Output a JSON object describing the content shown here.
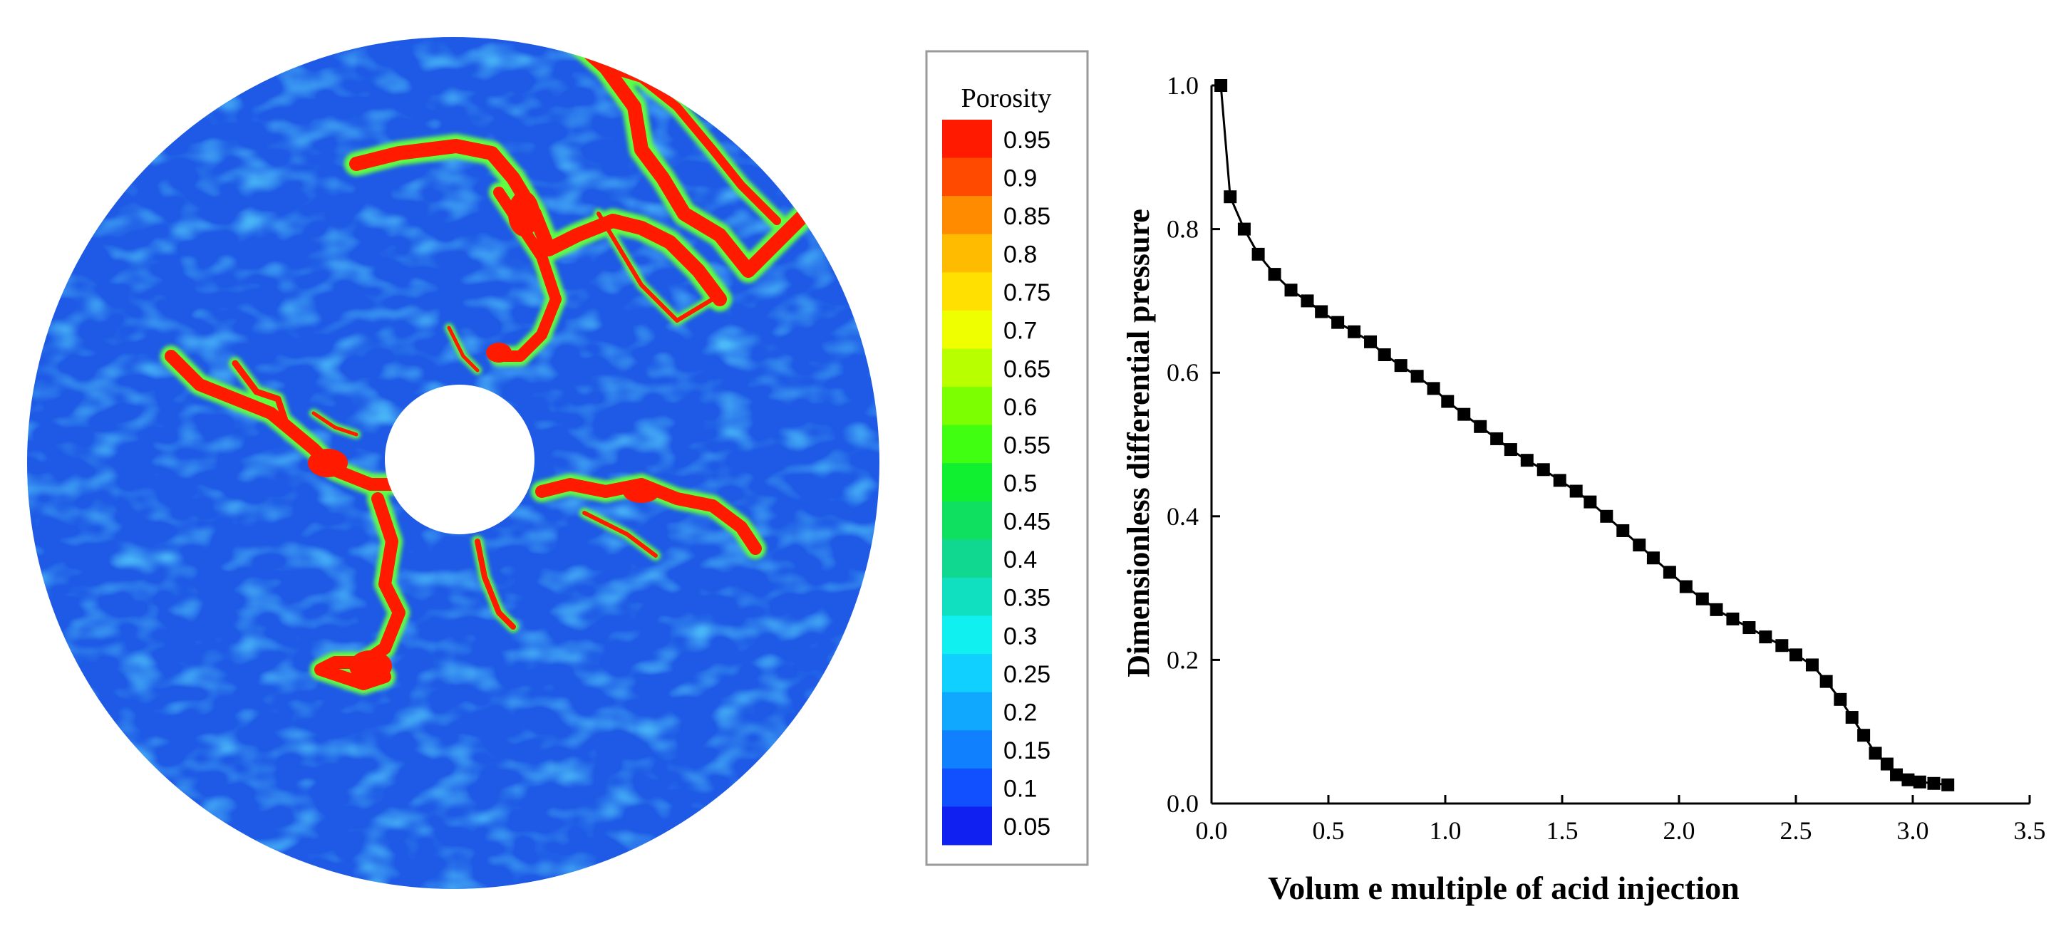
{
  "colorbar": {
    "title": "Porosity",
    "labels": [
      "0.95",
      "0.9",
      "0.85",
      "0.8",
      "0.75",
      "0.7",
      "0.65",
      "0.6",
      "0.55",
      "0.5",
      "0.45",
      "0.4",
      "0.35",
      "0.3",
      "0.25",
      "0.2",
      "0.15",
      "0.1",
      "0.05"
    ],
    "colors": [
      "#ff1a00",
      "#ff4a00",
      "#ff8c00",
      "#ffbb00",
      "#ffe000",
      "#f0ff00",
      "#b8ff00",
      "#7cff00",
      "#40ff10",
      "#10f030",
      "#10e060",
      "#10d890",
      "#10e0c0",
      "#10f0f0",
      "#10d0ff",
      "#10a8ff",
      "#1080ff",
      "#1050ff",
      "#1020f0"
    ]
  },
  "porosity_map": {
    "background_color": "#1e5ae6",
    "wormhole_color": "#ff1a00",
    "halo_color": "#60ff40"
  },
  "chart_data": {
    "type": "scatter",
    "xlabel": "Volum e multiple of acid injection",
    "ylabel": "Dimensionless differential pressure",
    "xlim": [
      0,
      3.5
    ],
    "ylim": [
      0,
      1.0
    ],
    "x_ticks": [
      "0.0",
      "0.5",
      "1.0",
      "1.5",
      "2.0",
      "2.5",
      "3.0",
      "3.5"
    ],
    "y_ticks": [
      "0.0",
      "0.2",
      "0.4",
      "0.6",
      "0.8",
      "1.0"
    ],
    "grid": false,
    "series": [
      {
        "marker": "square",
        "line": true,
        "color": "#000000",
        "x": [
          0.04,
          0.08,
          0.14,
          0.2,
          0.27,
          0.34,
          0.41,
          0.47,
          0.54,
          0.61,
          0.68,
          0.74,
          0.81,
          0.88,
          0.95,
          1.01,
          1.08,
          1.15,
          1.22,
          1.28,
          1.35,
          1.42,
          1.49,
          1.56,
          1.62,
          1.69,
          1.76,
          1.83,
          1.89,
          1.96,
          2.03,
          2.1,
          2.16,
          2.23,
          2.3,
          2.37,
          2.44,
          2.5,
          2.57,
          2.63,
          2.69,
          2.74,
          2.79,
          2.84,
          2.89,
          2.93,
          2.98,
          3.03,
          3.09,
          3.15
        ],
        "y": [
          1.0,
          0.845,
          0.8,
          0.765,
          0.737,
          0.715,
          0.7,
          0.685,
          0.67,
          0.657,
          0.643,
          0.625,
          0.61,
          0.595,
          0.578,
          0.56,
          0.542,
          0.525,
          0.508,
          0.493,
          0.478,
          0.465,
          0.45,
          0.435,
          0.42,
          0.4,
          0.38,
          0.36,
          0.342,
          0.322,
          0.302,
          0.285,
          0.27,
          0.257,
          0.245,
          0.232,
          0.22,
          0.207,
          0.193,
          0.17,
          0.145,
          0.12,
          0.095,
          0.07,
          0.055,
          0.04,
          0.033,
          0.03,
          0.028,
          0.026
        ]
      }
    ]
  }
}
